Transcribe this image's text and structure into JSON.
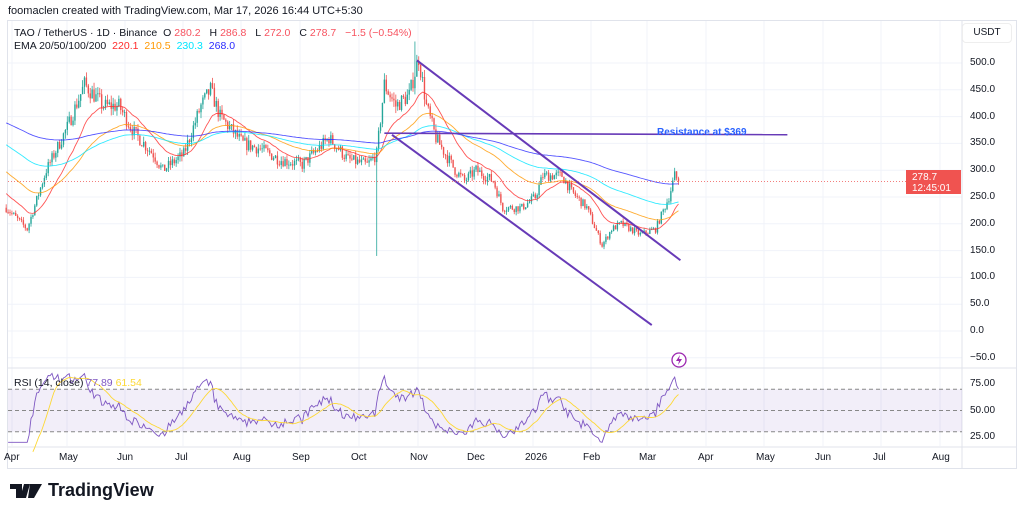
{
  "credit": "foomaclen created with TradingView.com, Mar 17, 2026 16:44 UTC+5:30",
  "legend": {
    "symbol": "TAO / TetherUS · 1D · Binance",
    "o_label": "O",
    "o": "280.2",
    "h_label": "H",
    "h": "286.8",
    "l_label": "L",
    "l": "272.0",
    "c_label": "C",
    "c": "278.7",
    "change": "−1.5 (−0.54%)",
    "ema_label": "EMA 20/50/100/200",
    "ema20": "220.1",
    "ema50": "210.5",
    "ema100": "230.3",
    "ema200": "268.0"
  },
  "rsi_legend": {
    "label": "RSI (14, close)",
    "rsi": "77.89",
    "ma": "61.54"
  },
  "price_axis": {
    "currency": "USDT",
    "labels": [
      "500.0",
      "450.0",
      "400.0",
      "350.0",
      "300.0",
      "250.0",
      "200.0",
      "150.0",
      "100.0",
      "50.0",
      "0.0",
      "−50.0"
    ],
    "last_price": "278.7",
    "countdown": "12:45:01"
  },
  "rsi_axis": [
    "75.00",
    "50.00",
    "25.00"
  ],
  "time_axis": [
    "Apr",
    "May",
    "Jun",
    "Jul",
    "Aug",
    "Sep",
    "Oct",
    "Nov",
    "Dec",
    "2026",
    "Feb",
    "Mar",
    "Apr",
    "May",
    "Jun",
    "Jul",
    "Aug"
  ],
  "annotation": "Resistance at $369",
  "brand": "TradingView",
  "colors": {
    "up": "#26a69a",
    "down": "#ef5350",
    "ema20": "#ff2a2a",
    "ema50": "#ff9800",
    "ema100": "#00e5ff",
    "ema200": "#2a2aff",
    "rsi": "#7e57c2",
    "rsi_ma": "#fdd835",
    "trendline": "#673ab7",
    "resistance_text": "#2962ff"
  },
  "chart_data": {
    "type": "candlestick",
    "ylim": [
      -60,
      540
    ],
    "rsi_ylim": [
      20,
      85
    ],
    "rsi_bands": [
      30,
      50,
      70
    ],
    "closes": [
      [
        "2025-03-30",
        230
      ],
      [
        "2025-04-10",
        190
      ],
      [
        "2025-04-20",
        300
      ],
      [
        "2025-05-01",
        380
      ],
      [
        "2025-05-10",
        460
      ],
      [
        "2025-05-20",
        420
      ],
      [
        "2025-05-28",
        420
      ],
      [
        "2025-06-05",
        370
      ],
      [
        "2025-06-15",
        330
      ],
      [
        "2025-06-20",
        300
      ],
      [
        "2025-07-01",
        330
      ],
      [
        "2025-07-10",
        420
      ],
      [
        "2025-07-15",
        450
      ],
      [
        "2025-07-20",
        400
      ],
      [
        "2025-08-01",
        350
      ],
      [
        "2025-08-10",
        340
      ],
      [
        "2025-08-20",
        320
      ],
      [
        "2025-09-01",
        310
      ],
      [
        "2025-09-15",
        360
      ],
      [
        "2025-09-25",
        320
      ],
      [
        "2025-10-05",
        310
      ],
      [
        "2025-10-10",
        330
      ],
      [
        "2025-10-14",
        460
      ],
      [
        "2025-10-20",
        420
      ],
      [
        "2025-10-27",
        440
      ],
      [
        "2025-11-01",
        510
      ],
      [
        "2025-11-05",
        420
      ],
      [
        "2025-11-10",
        360
      ],
      [
        "2025-11-20",
        300
      ],
      [
        "2025-11-25",
        280
      ],
      [
        "2025-12-01",
        300
      ],
      [
        "2025-12-10",
        280
      ],
      [
        "2025-12-15",
        230
      ],
      [
        "2025-12-25",
        230
      ],
      [
        "2026-01-01",
        250
      ],
      [
        "2026-01-05",
        290
      ],
      [
        "2026-01-15",
        290
      ],
      [
        "2026-01-20",
        260
      ],
      [
        "2026-01-28",
        230
      ],
      [
        "2026-02-05",
        160
      ],
      [
        "2026-02-10",
        190
      ],
      [
        "2026-02-15",
        200
      ],
      [
        "2026-02-25",
        180
      ],
      [
        "2026-03-05",
        190
      ],
      [
        "2026-03-12",
        250
      ],
      [
        "2026-03-15",
        290
      ],
      [
        "2026-03-17",
        278.7
      ]
    ],
    "trendlines": [
      {
        "from": [
          "2025-10-31",
          505
        ],
        "to": [
          "2026-03-18",
          132
        ]
      },
      {
        "from": [
          "2025-10-18",
          366
        ],
        "to": [
          "2026-03-03",
          11
        ]
      }
    ],
    "resistance": {
      "price": 369,
      "from": "2025-10-14",
      "to": "2026-05-13"
    },
    "last_price": 278.7
  }
}
